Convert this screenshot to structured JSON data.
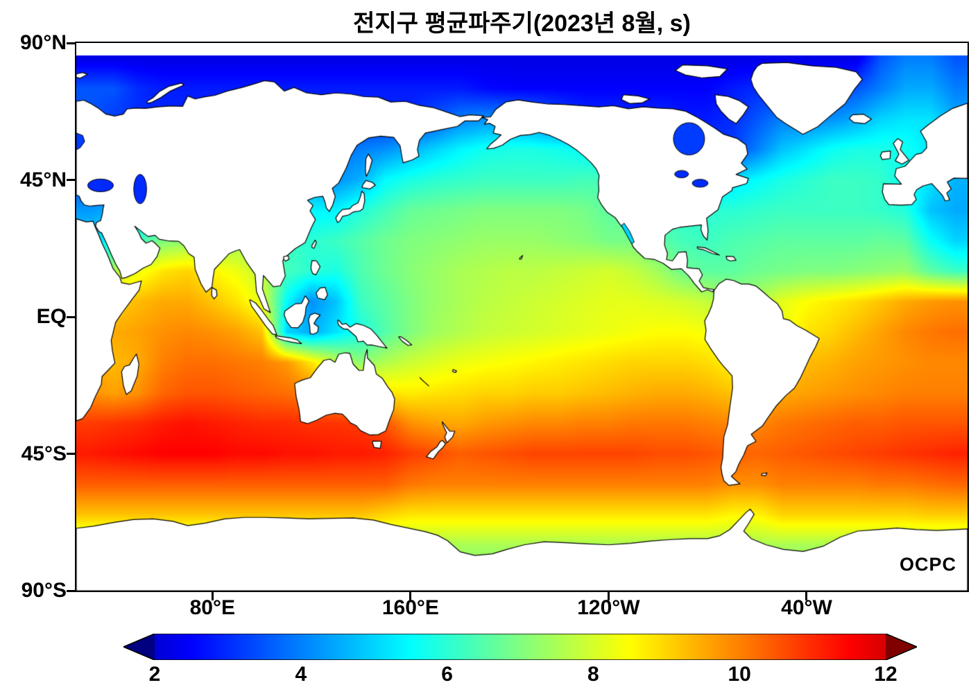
{
  "title": "전지구 평균파주기(2023년 8월, s)",
  "watermark": "OCPC",
  "axes": {
    "y_ticks": [
      {
        "label": "90°N",
        "lat": 90
      },
      {
        "label": "45°N",
        "lat": 45
      },
      {
        "label": "EQ",
        "lat": 0
      },
      {
        "label": "45°S",
        "lat": -45
      },
      {
        "label": "90°S",
        "lat": -90
      }
    ],
    "x_ticks": [
      {
        "label": "80°E",
        "lon": 80
      },
      {
        "label": "160°E",
        "lon": 160
      },
      {
        "label": "120°W",
        "lon": 240
      },
      {
        "label": "40°W",
        "lon": 320
      }
    ]
  },
  "colorbar": {
    "labels": [
      "2",
      "4",
      "6",
      "8",
      "10",
      "12"
    ],
    "values": [
      2,
      4,
      6,
      8,
      10,
      12
    ],
    "range": [
      1,
      13
    ]
  },
  "chart_data": {
    "type": "heatmap",
    "title": "전지구 평균파주기(2023년 8월, s)",
    "units": "s",
    "projection": "equirectangular",
    "lon_range": [
      25,
      385
    ],
    "lat_range": [
      -90,
      90
    ],
    "colormap": "jet",
    "value_range": [
      1,
      13
    ],
    "colorbar_ticks": [
      2,
      4,
      6,
      8,
      10,
      12
    ],
    "grid": {
      "lons": [
        30,
        40,
        50,
        60,
        70,
        80,
        90,
        100,
        110,
        120,
        130,
        140,
        150,
        160,
        170,
        180,
        190,
        200,
        210,
        220,
        230,
        240,
        250,
        260,
        270,
        280,
        290,
        300,
        310,
        320,
        330,
        340,
        350,
        360,
        370,
        380
      ],
      "lats": [
        85,
        75,
        65,
        55,
        45,
        35,
        25,
        15,
        5,
        -5,
        -15,
        -25,
        -35,
        -45,
        -55,
        -65,
        -75,
        -85
      ],
      "values": [
        [
          2.2,
          2.2,
          2.2,
          2.2,
          2.2,
          2.2,
          2.2,
          2.2,
          2.2,
          2.2,
          2.2,
          2.2,
          2.2,
          2.2,
          2.2,
          2.2,
          2.2,
          2.2,
          2.2,
          2.2,
          2.2,
          2.2,
          2.2,
          2.2,
          2.2,
          2.2,
          2.2,
          2.2,
          2.2,
          2.2,
          2.2,
          2.2,
          3.5,
          4,
          4,
          3.5
        ],
        [
          3.5,
          3.5,
          3,
          2.8,
          2.8,
          2.8,
          2.8,
          2.8,
          2.8,
          2.8,
          2.8,
          2.8,
          2.8,
          2.8,
          2.8,
          2.8,
          2.6,
          2.5,
          2.5,
          2.5,
          2.5,
          2.5,
          2.5,
          2.5,
          2.5,
          2.5,
          2.8,
          3,
          3,
          3,
          3.2,
          3.5,
          4,
          4.5,
          4.5,
          4
        ],
        [
          3.5,
          3.2,
          3,
          3,
          3,
          3,
          3,
          3,
          3,
          3,
          3,
          3,
          3,
          3,
          3.5,
          4,
          4.2,
          4.2,
          4,
          3.5,
          3,
          3,
          3,
          3,
          2.8,
          2.8,
          3,
          3.5,
          4,
          4,
          4.2,
          4.5,
          5,
          5.2,
          5.2,
          4.5
        ],
        [
          3.5,
          3.5,
          3.5,
          3.5,
          3.5,
          3.5,
          3.5,
          3.5,
          3.5,
          3.5,
          3.8,
          4,
          4.2,
          4.6,
          5,
          5.4,
          5.7,
          5.8,
          5.8,
          5.7,
          5.5,
          5.2,
          5,
          4.5,
          3.8,
          3.2,
          3.2,
          4,
          4.8,
          5.2,
          5.6,
          5.8,
          5.8,
          5.7,
          5.2,
          4.6
        ],
        [
          3.4,
          3.3,
          3.2,
          3.4,
          3.6,
          3.8,
          4,
          4,
          4,
          4.2,
          4.2,
          4.6,
          5.5,
          5.8,
          6,
          6.1,
          6.2,
          6.2,
          6.2,
          6.2,
          6.3,
          6.3,
          5.8,
          5.2,
          5,
          5,
          5.2,
          5.5,
          5.8,
          6,
          6.2,
          6.2,
          6.1,
          5.6,
          5.2,
          4.6
        ],
        [
          4.3,
          4.5,
          5,
          5.2,
          5.5,
          5.6,
          5.8,
          5.8,
          5.6,
          5.4,
          5.4,
          5.9,
          6.3,
          6.7,
          6.8,
          6.9,
          7,
          7,
          7,
          7,
          6.9,
          6.6,
          6.6,
          6.2,
          6,
          6,
          6,
          6.1,
          6.2,
          6.2,
          6.2,
          6.2,
          6.1,
          5.9,
          4.8,
          4.5
        ],
        [
          5,
          5.5,
          6.2,
          7,
          7.2,
          7.2,
          7.4,
          7,
          6.2,
          6,
          6.2,
          6.5,
          6.8,
          7,
          7.1,
          7.2,
          7.3,
          7.3,
          7.3,
          7.2,
          7.1,
          6.9,
          6.9,
          6.6,
          6.3,
          6.2,
          6.4,
          6.5,
          6.6,
          6.6,
          6.6,
          6.6,
          6.7,
          6.6,
          5.6,
          5
        ],
        [
          7,
          7.6,
          8.3,
          8.8,
          9,
          8.6,
          8.3,
          7.8,
          6.3,
          6,
          5.8,
          6.4,
          6.8,
          7.1,
          7.3,
          7.5,
          7.6,
          7.7,
          7.7,
          7.8,
          7.9,
          8,
          7.8,
          7.4,
          6.8,
          6.6,
          6.6,
          6.8,
          6.9,
          7,
          7,
          7.1,
          7.2,
          7.3,
          6.6,
          6.2
        ],
        [
          8.5,
          9,
          9.3,
          9.5,
          9.5,
          9.2,
          8.8,
          8.2,
          5.5,
          4.2,
          4.8,
          6.2,
          6.6,
          7,
          7.3,
          7.5,
          7.7,
          7.8,
          7.9,
          8,
          8.1,
          8.2,
          8.2,
          8.1,
          8,
          7.8,
          7.5,
          7.6,
          8.2,
          8.5,
          8.7,
          8.9,
          9.2,
          9.5,
          9.7,
          9.8
        ],
        [
          9.2,
          9.5,
          9.6,
          9.8,
          9.9,
          9.8,
          9.6,
          9.2,
          5,
          4.5,
          5.2,
          5.8,
          6.5,
          7,
          7.4,
          7.6,
          7.8,
          7.9,
          8,
          8.1,
          8.2,
          8.3,
          8.4,
          8.5,
          8.5,
          8.4,
          7.8,
          8,
          8.3,
          8.8,
          9,
          9.3,
          9.6,
          9.9,
          10.1,
          10.2
        ],
        [
          9.5,
          9.3,
          9.5,
          10,
          10.2,
          10.2,
          10.1,
          10,
          9.7,
          8.8,
          7.8,
          7.2,
          7.6,
          7.9,
          8.1,
          8.3,
          8.4,
          8.5,
          8.6,
          8.7,
          8.8,
          8.9,
          9,
          9,
          9,
          8.9,
          8.6,
          8.8,
          9,
          9.3,
          9.4,
          9.6,
          9.7,
          9.8,
          9.9,
          9.9
        ],
        [
          9.8,
          9.6,
          9.8,
          10.3,
          10.5,
          10.5,
          10.4,
          10.3,
          10.2,
          10,
          9.5,
          9.3,
          8.8,
          8.7,
          8.8,
          8.9,
          9,
          9,
          9.1,
          9.1,
          9.2,
          9.3,
          9.4,
          9.5,
          9.5,
          9.4,
          9.2,
          9.3,
          9.5,
          9.6,
          9.7,
          9.8,
          9.9,
          10,
          10,
          10
        ],
        [
          10.8,
          10.9,
          11,
          11.2,
          11.3,
          11.2,
          11.1,
          11,
          11,
          10.9,
          10.9,
          10.8,
          10.5,
          9.8,
          9.6,
          9.5,
          9.7,
          9.8,
          9.9,
          9.9,
          10,
          10,
          10.1,
          10.1,
          10.1,
          10,
          9.9,
          9.9,
          10.1,
          10.2,
          10.3,
          10.4,
          10.4,
          10.5,
          10.5,
          10.5
        ],
        [
          11.2,
          11.3,
          11.4,
          11.5,
          11.5,
          11.5,
          11.4,
          11.4,
          11.3,
          11.3,
          11.2,
          11.2,
          11.1,
          10.8,
          10.6,
          10.4,
          10.5,
          10.6,
          10.7,
          10.7,
          10.7,
          10.7,
          10.7,
          10.6,
          10.6,
          10.5,
          10.4,
          10.3,
          10.4,
          10.5,
          10.6,
          10.7,
          10.8,
          10.9,
          11,
          11.1
        ],
        [
          10.4,
          10.4,
          10.4,
          10.4,
          10.4,
          10.4,
          10.4,
          10.4,
          10.4,
          10.4,
          10.4,
          10.4,
          10.4,
          10.1,
          10,
          10,
          10,
          10,
          10,
          10,
          10,
          10,
          10,
          10,
          10,
          10,
          9.8,
          9.8,
          10,
          10,
          10,
          10,
          10.1,
          10.1,
          10.2,
          10.3
        ],
        [
          9.2,
          9.2,
          9.2,
          9.2,
          9.2,
          9.2,
          9.2,
          9.2,
          9.2,
          9.2,
          9.2,
          9.2,
          9,
          8.8,
          8.8,
          8.8,
          8.8,
          8.8,
          8.8,
          8.8,
          8.8,
          8.8,
          8.8,
          8.8,
          8.8,
          8.8,
          8.6,
          8.6,
          9,
          9,
          9,
          9,
          9,
          9,
          9.1,
          9.1
        ],
        [
          7.5,
          7.5,
          7.5,
          7.5,
          7.5,
          7.5,
          7.5,
          7.5,
          7.5,
          7.5,
          7.5,
          7.5,
          7.5,
          7.5,
          7.5,
          7.5,
          7.5,
          7.5,
          7.5,
          7.5,
          7.5,
          7.5,
          7.5,
          7.5,
          7.5,
          7.5,
          7.5,
          7.5,
          7.5,
          7.5,
          7.5,
          7.5,
          7.5,
          7.5,
          7.5,
          7.5
        ],
        [
          7,
          7,
          7,
          7,
          7,
          7,
          7,
          7,
          7,
          7,
          7,
          7,
          7,
          7,
          7,
          7,
          7,
          7,
          7,
          7,
          7,
          7,
          7,
          7,
          7,
          7,
          7,
          7,
          7,
          7,
          7,
          7,
          7,
          7,
          7,
          7
        ]
      ]
    }
  }
}
